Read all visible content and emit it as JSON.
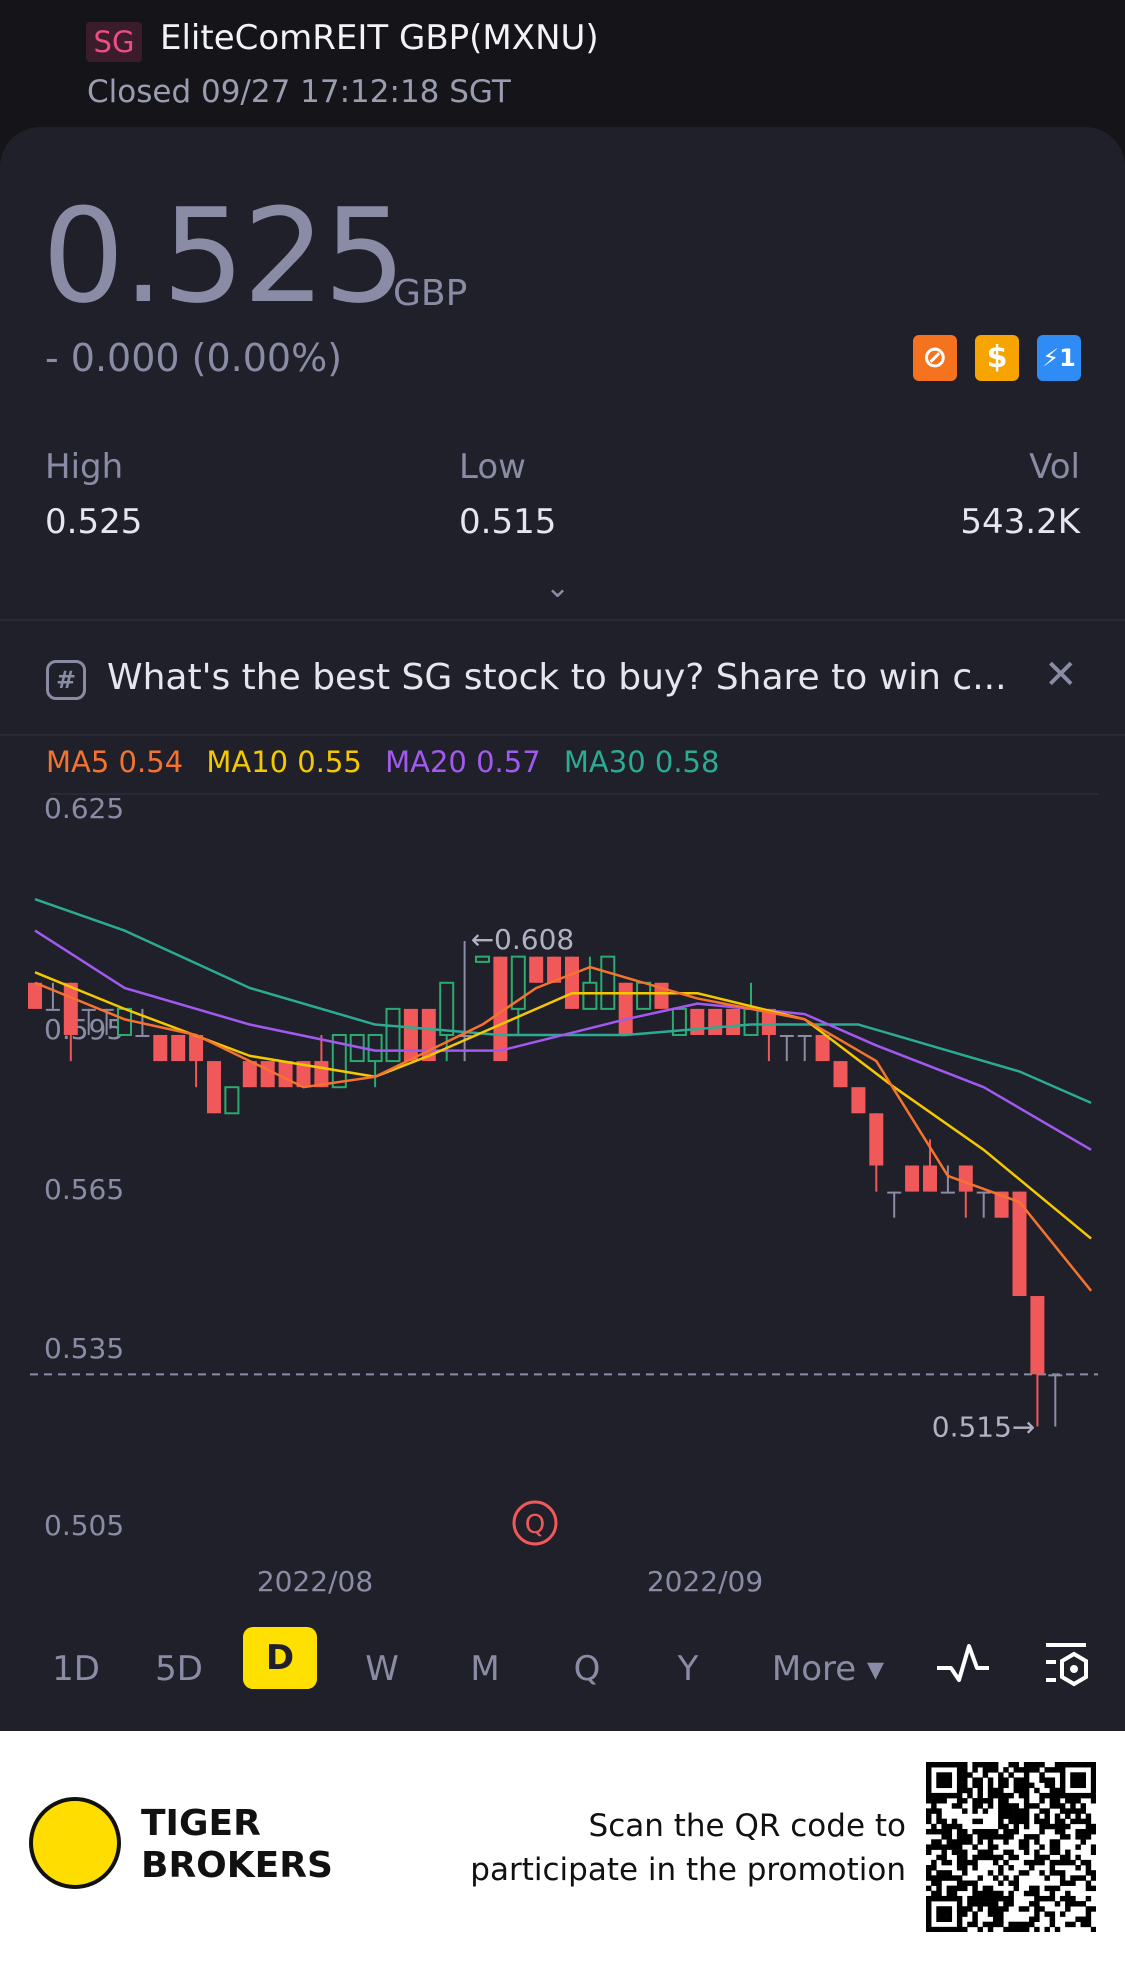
{
  "header": {
    "market_badge": "SG",
    "title": "EliteComREIT GBP(MXNU)",
    "status": "Closed 09/27 17:12:18 SGT"
  },
  "quote": {
    "price": "0.525",
    "currency": "GBP",
    "change": "- 0.000 (0.00%)",
    "badges": [
      {
        "icon": "no-short-icon",
        "color": "#f5731f"
      },
      {
        "icon": "dollar-icon",
        "label": "$",
        "color": "#f7a400"
      },
      {
        "icon": "flash-icon",
        "label": "⚡1",
        "color": "#2f8cf5"
      }
    ],
    "high_label": "High",
    "high": "0.525",
    "low_label": "Low",
    "low": "0.515",
    "vol_label": "Vol",
    "vol": "543.2K"
  },
  "banner": {
    "icon": "hashtag-icon",
    "icon_glyph": "#",
    "text": "What's the best SG stock to buy? Share to win c...",
    "close": "✕"
  },
  "ma_legend": [
    {
      "label": "MA5 0.54",
      "color": "#f5732f"
    },
    {
      "label": "MA10 0.55",
      "color": "#f5c800"
    },
    {
      "label": "MA20 0.57",
      "color": "#a259f0"
    },
    {
      "label": "MA30 0.58",
      "color": "#2bab92"
    }
  ],
  "chart_data": {
    "type": "candlestick",
    "y_ticks": [
      "0.625",
      "0.595",
      "0.565",
      "0.535",
      "0.505"
    ],
    "x_ticks": [
      "2022/08",
      "2022/09"
    ],
    "max_label": "←0.608",
    "min_label": "0.515→",
    "current_price": 0.525,
    "colors": {
      "up": "#2bab6f",
      "down": "#f0585a",
      "flat": "#8a8ca6"
    },
    "candles_ohlc": [
      [
        0.6,
        0.6,
        0.595,
        0.595
      ],
      [
        0.595,
        0.6,
        0.595,
        0.595
      ],
      [
        0.6,
        0.6,
        0.585,
        0.59
      ],
      [
        0.595,
        0.595,
        0.59,
        0.595
      ],
      [
        0.595,
        0.595,
        0.59,
        0.595
      ],
      [
        0.59,
        0.595,
        0.59,
        0.595
      ],
      [
        0.59,
        0.595,
        0.59,
        0.59
      ],
      [
        0.59,
        0.59,
        0.585,
        0.585
      ],
      [
        0.59,
        0.59,
        0.585,
        0.585
      ],
      [
        0.59,
        0.59,
        0.58,
        0.585
      ],
      [
        0.585,
        0.585,
        0.575,
        0.575
      ],
      [
        0.575,
        0.58,
        0.575,
        0.58
      ],
      [
        0.585,
        0.585,
        0.58,
        0.58
      ],
      [
        0.585,
        0.585,
        0.58,
        0.58
      ],
      [
        0.585,
        0.585,
        0.58,
        0.58
      ],
      [
        0.585,
        0.585,
        0.58,
        0.58
      ],
      [
        0.585,
        0.59,
        0.58,
        0.58
      ],
      [
        0.58,
        0.59,
        0.58,
        0.59
      ],
      [
        0.585,
        0.59,
        0.585,
        0.59
      ],
      [
        0.585,
        0.59,
        0.58,
        0.59
      ],
      [
        0.585,
        0.595,
        0.585,
        0.595
      ],
      [
        0.595,
        0.595,
        0.585,
        0.585
      ],
      [
        0.595,
        0.595,
        0.585,
        0.585
      ],
      [
        0.59,
        0.6,
        0.585,
        0.6
      ],
      [
        0.59,
        0.608,
        0.585,
        0.59
      ],
      [
        0.604,
        0.605,
        0.604,
        0.605
      ],
      [
        0.605,
        0.605,
        0.585,
        0.585
      ],
      [
        0.595,
        0.605,
        0.59,
        0.605
      ],
      [
        0.605,
        0.605,
        0.6,
        0.6
      ],
      [
        0.605,
        0.605,
        0.6,
        0.6
      ],
      [
        0.605,
        0.605,
        0.595,
        0.595
      ],
      [
        0.595,
        0.605,
        0.595,
        0.6
      ],
      [
        0.595,
        0.605,
        0.595,
        0.605
      ],
      [
        0.6,
        0.6,
        0.59,
        0.59
      ],
      [
        0.595,
        0.6,
        0.595,
        0.6
      ],
      [
        0.6,
        0.6,
        0.595,
        0.595
      ],
      [
        0.59,
        0.595,
        0.59,
        0.595
      ],
      [
        0.595,
        0.595,
        0.59,
        0.59
      ],
      [
        0.595,
        0.595,
        0.59,
        0.59
      ],
      [
        0.595,
        0.595,
        0.59,
        0.59
      ],
      [
        0.59,
        0.6,
        0.59,
        0.595
      ],
      [
        0.595,
        0.595,
        0.585,
        0.59
      ],
      [
        0.59,
        0.59,
        0.585,
        0.59
      ],
      [
        0.59,
        0.59,
        0.585,
        0.59
      ],
      [
        0.59,
        0.59,
        0.585,
        0.585
      ],
      [
        0.585,
        0.585,
        0.58,
        0.58
      ],
      [
        0.58,
        0.58,
        0.575,
        0.575
      ],
      [
        0.575,
        0.575,
        0.56,
        0.565
      ],
      [
        0.56,
        0.56,
        0.555,
        0.56
      ],
      [
        0.565,
        0.565,
        0.56,
        0.56
      ],
      [
        0.565,
        0.57,
        0.56,
        0.56
      ],
      [
        0.56,
        0.565,
        0.56,
        0.56
      ],
      [
        0.565,
        0.565,
        0.555,
        0.56
      ],
      [
        0.56,
        0.56,
        0.555,
        0.56
      ],
      [
        0.56,
        0.56,
        0.555,
        0.555
      ],
      [
        0.56,
        0.56,
        0.54,
        0.54
      ],
      [
        0.54,
        0.54,
        0.515,
        0.525
      ],
      [
        0.525,
        0.525,
        0.515,
        0.525
      ]
    ],
    "ma_series": [
      {
        "name": "MA30",
        "color": "#2bab92",
        "points": [
          [
            0,
            0.616
          ],
          [
            5,
            0.61
          ],
          [
            12,
            0.599
          ],
          [
            19,
            0.592
          ],
          [
            26,
            0.59
          ],
          [
            33,
            0.59
          ],
          [
            40,
            0.592
          ],
          [
            46,
            0.592
          ],
          [
            50,
            0.588
          ],
          [
            55,
            0.583
          ],
          [
            59,
            0.577
          ]
        ]
      },
      {
        "name": "MA20",
        "color": "#a259f0",
        "points": [
          [
            0,
            0.61
          ],
          [
            5,
            0.599
          ],
          [
            12,
            0.592
          ],
          [
            19,
            0.587
          ],
          [
            26,
            0.587
          ],
          [
            33,
            0.593
          ],
          [
            37,
            0.596
          ],
          [
            43,
            0.594
          ],
          [
            47,
            0.588
          ],
          [
            53,
            0.58
          ],
          [
            59,
            0.568
          ]
        ]
      },
      {
        "name": "MA10",
        "color": "#f5c800",
        "points": [
          [
            0,
            0.602
          ],
          [
            5,
            0.595
          ],
          [
            12,
            0.586
          ],
          [
            19,
            0.582
          ],
          [
            22,
            0.586
          ],
          [
            26,
            0.592
          ],
          [
            30,
            0.598
          ],
          [
            37,
            0.598
          ],
          [
            43,
            0.593
          ],
          [
            48,
            0.58
          ],
          [
            53,
            0.568
          ],
          [
            59,
            0.551
          ]
        ]
      },
      {
        "name": "MA5",
        "color": "#f5732f",
        "points": [
          [
            0,
            0.6
          ],
          [
            5,
            0.593
          ],
          [
            9,
            0.59
          ],
          [
            15,
            0.58
          ],
          [
            19,
            0.582
          ],
          [
            25,
            0.592
          ],
          [
            28,
            0.599
          ],
          [
            31,
            0.603
          ],
          [
            37,
            0.597
          ],
          [
            43,
            0.593
          ],
          [
            47,
            0.585
          ],
          [
            51,
            0.563
          ],
          [
            55,
            0.558
          ],
          [
            59,
            0.541
          ]
        ]
      }
    ]
  },
  "periods": [
    "1D",
    "5D",
    "D",
    "W",
    "M",
    "Q",
    "Y",
    "More ▾"
  ],
  "active_period": "D",
  "footer": {
    "brand_line1": "TIGER",
    "brand_line2": "BROKERS",
    "promo_line1": "Scan the QR code to",
    "promo_line2": "participate in the promotion"
  }
}
